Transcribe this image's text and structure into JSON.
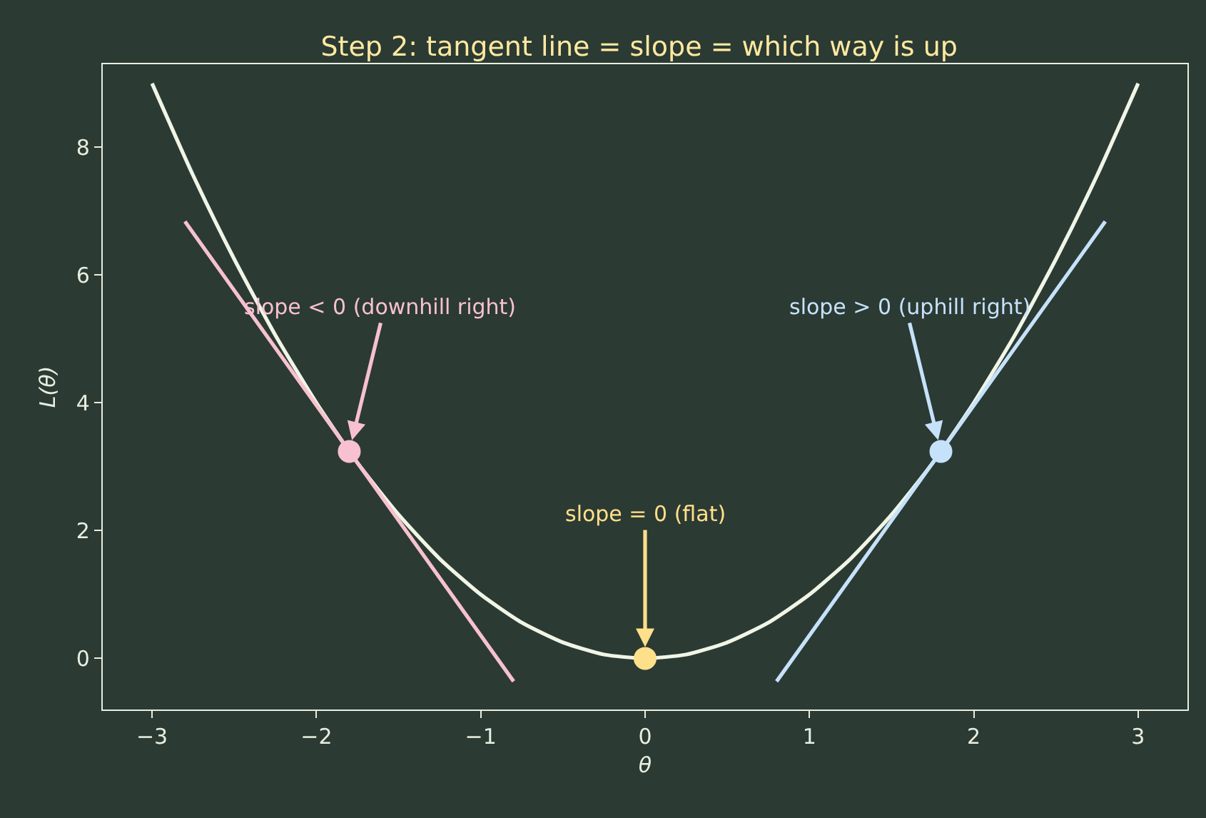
{
  "chart_data": {
    "type": "line",
    "title": "Step 2: tangent line = slope = which way is up",
    "xlabel": "θ",
    "ylabel": "L(θ)",
    "series": [
      {
        "color": "#f0f5e6",
        "x": [
          -3,
          -2.75,
          -2.5,
          -2.25,
          -2,
          -1.75,
          -1.5,
          -1.25,
          -1,
          -0.75,
          -0.5,
          -0.25,
          0,
          0.25,
          0.5,
          0.75,
          1,
          1.25,
          1.5,
          1.75,
          2,
          2.25,
          2.5,
          2.75,
          3
        ],
        "values": [
          9,
          7.56,
          6.25,
          5.06,
          4,
          3.06,
          2.25,
          1.56,
          1,
          0.56,
          0.25,
          0.06,
          0,
          0.06,
          0.25,
          0.56,
          1,
          1.56,
          2.25,
          3.06,
          4,
          5.06,
          6.25,
          7.56,
          9
        ]
      },
      {
        "type": "line",
        "color": "#f7c1cf",
        "x": [
          -2.8,
          -0.8
        ],
        "values": [
          6.84,
          -0.36
        ]
      },
      {
        "type": "line",
        "color": "#c6e2fb",
        "x": [
          0.8,
          2.8
        ],
        "values": [
          -0.36,
          6.84
        ]
      },
      {
        "type": "scatter",
        "marker": "circle",
        "x": [
          -1.8,
          0,
          1.8
        ],
        "values": [
          3.24,
          0,
          3.24
        ],
        "colors": [
          "#f7c1cf",
          "#ffe08a",
          "#c6e2fb"
        ]
      }
    ],
    "annotations": [
      {
        "text": "slope < 0 (downhill right)",
        "x": -1.8,
        "y": 3.24
      },
      {
        "text": "slope = 0 (flat)",
        "x": 0,
        "y": 0
      },
      {
        "text": "slope > 0 (uphill right)",
        "x": 1.8,
        "y": 3.24
      }
    ],
    "xlim": [
      -3.3,
      3.3
    ],
    "ylim": [
      -0.8,
      9.3
    ],
    "xticks": [
      {
        "value": -3,
        "label": "−3"
      },
      {
        "value": -2,
        "label": "−2"
      },
      {
        "value": -1,
        "label": "−1"
      },
      0,
      1,
      2,
      3
    ],
    "yticks": [
      0,
      2,
      4,
      6,
      8
    ],
    "grid": false,
    "legend": false
  }
}
